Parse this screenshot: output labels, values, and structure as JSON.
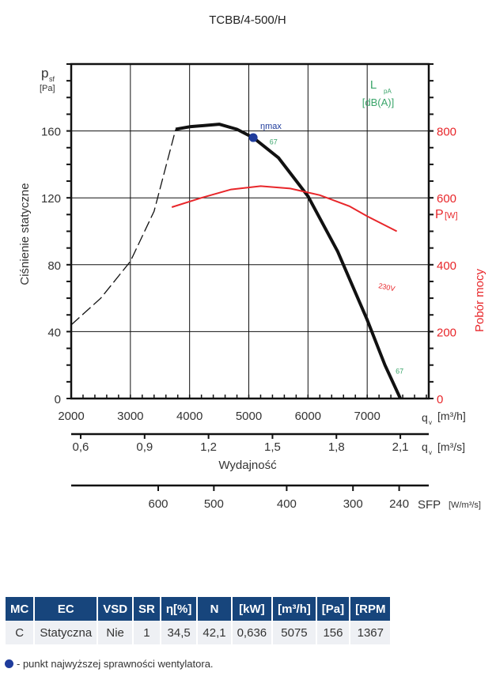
{
  "chart_data": {
    "type": "line",
    "title": "TCBB/4-500/H",
    "xlabel": "Wydajność",
    "ylabel": "Ciśnienie statyczne",
    "ylabel_right": "Pobór mocy",
    "y_unit": "[Pa]",
    "y_symbol": "p",
    "y_sub": "sf",
    "yr_symbol": "P",
    "yr_unit": "[W]",
    "x_unit": "[m³/h]",
    "x2_unit": "[m³/s]",
    "x_symbol": "q",
    "x_sub": "v",
    "xlim": [
      2000,
      8040
    ],
    "ylim": [
      0,
      200
    ],
    "yrlim": [
      0,
      1000
    ],
    "x_ticks": [
      2000,
      3000,
      4000,
      5000,
      6000,
      7000
    ],
    "y_ticks": [
      0,
      40,
      80,
      120,
      160
    ],
    "yr_ticks": [
      0,
      200,
      400,
      600,
      800
    ],
    "x2_ticks": [
      {
        "v": 0.6,
        "label": "0,6"
      },
      {
        "v": 0.9,
        "label": "0,9"
      },
      {
        "v": 1.2,
        "label": "1,2"
      },
      {
        "v": 1.5,
        "label": "1,5"
      },
      {
        "v": 1.8,
        "label": "1,8"
      },
      {
        "v": 2.1,
        "label": "2,1"
      }
    ],
    "sfp_label": "SFP",
    "sfp_unit": "[W/m³/s]",
    "sfp_ticks": [
      {
        "label": "600",
        "q": 3470
      },
      {
        "label": "500",
        "q": 4410
      },
      {
        "label": "400",
        "q": 5640
      },
      {
        "label": "300",
        "q": 6760
      },
      {
        "label": "240",
        "q": 7540
      }
    ],
    "lpa_label": "L",
    "lpa_sub": "pA",
    "lpa_unit": "[dB(A)]",
    "series": [
      {
        "name": "pressure-dashed",
        "axis": "left",
        "x": [
          2000,
          2500,
          3000,
          3400,
          3765
        ],
        "y": [
          44,
          60,
          82,
          112,
          161
        ]
      },
      {
        "name": "pressure",
        "axis": "left",
        "x": [
          3765,
          4000,
          4500,
          4800,
          5075,
          5500,
          6000,
          6500,
          7000,
          7300,
          7560
        ],
        "y": [
          161,
          162.5,
          164,
          161,
          156,
          144,
          121,
          88,
          47,
          20,
          0
        ]
      },
      {
        "name": "power 230V",
        "axis": "right",
        "label": "230V",
        "x": [
          3700,
          4200,
          4700,
          5200,
          5700,
          6200,
          6700,
          7000,
          7500
        ],
        "y": [
          572,
          600,
          625,
          635,
          628,
          608,
          575,
          545,
          500
        ]
      }
    ],
    "eta_max": {
      "label": "ηmax",
      "x": 5075,
      "y": 156
    },
    "lpa_points": [
      {
        "label": "67",
        "x": 5350,
        "y": 152
      },
      {
        "label": "67",
        "x": 7480,
        "y": 15
      }
    ],
    "colors": {
      "pressure": "#111111",
      "power": "#e8262a",
      "lpa": "#3aa56a",
      "eta": "#1f3c9c",
      "header": "#17457c"
    }
  },
  "table": {
    "headers": [
      "MC",
      "EC",
      "VSD",
      "SR",
      "η[%]",
      "N",
      "[kW]",
      "[m³/h]",
      "[Pa]",
      "[RPM"
    ],
    "row": [
      "C",
      "Statyczna",
      "Nie",
      "1",
      "34,5",
      "42,1",
      "0,636",
      "5075",
      "156",
      "1367"
    ]
  },
  "note": "- punkt najwyższej sprawności wentylatora."
}
